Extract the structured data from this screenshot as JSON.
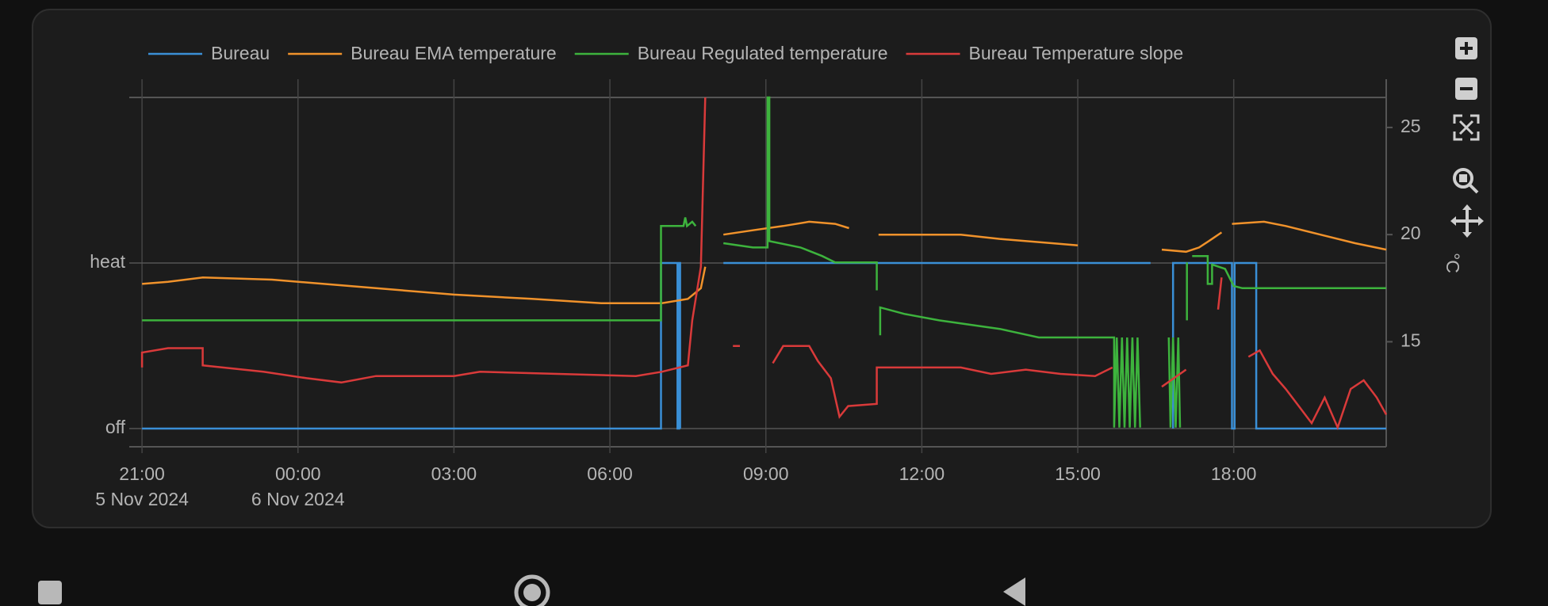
{
  "chart_data": {
    "type": "line",
    "xlim": [
      "2024-11-05T20:59",
      "2024-11-06T20:56"
    ],
    "xticks": [
      {
        "value": "2024-11-05T21:00",
        "label": "21:00"
      },
      {
        "value": "2024-11-06T00:00",
        "label": "00:00"
      },
      {
        "value": "2024-11-06T03:00",
        "label": "03:00"
      },
      {
        "value": "2024-11-06T06:00",
        "label": "06:00"
      },
      {
        "value": "2024-11-06T09:00",
        "label": "09:00"
      },
      {
        "value": "2024-11-06T12:00",
        "label": "12:00"
      },
      {
        "value": "2024-11-06T15:00",
        "label": "15:00"
      },
      {
        "value": "2024-11-06T18:00",
        "label": "18:00"
      }
    ],
    "xtick_dates": [
      {
        "value": "2024-11-05T21:00",
        "label": "5 Nov 2024"
      },
      {
        "value": "2024-11-06T00:00",
        "label": "6 Nov 2024"
      }
    ],
    "ylim": [
      -0.11,
      2.0
    ],
    "yticks": [
      {
        "value": 0,
        "label": "off"
      },
      {
        "value": 1,
        "label": "heat"
      }
    ],
    "y2lim": [
      10.1,
      26.4
    ],
    "y2ticks": [
      15,
      20,
      25
    ],
    "y2label": "°C",
    "grid": true,
    "legend": "top",
    "series": [
      {
        "name": "Bureau",
        "color": "#3a8fd6",
        "axis": "y",
        "x": [
          "2024-11-05T21:00",
          "2024-11-06T06:59",
          "2024-11-06T06:59",
          "2024-11-06T07:18",
          "2024-11-06T07:18",
          "2024-11-06T07:20",
          "2024-11-06T07:20",
          "2024-11-06T07:21",
          "2024-11-06T07:21",
          "2024-11-06T07:22",
          "2024-11-06T08:11",
          "2024-11-06T16:24",
          "2024-11-06T16:25",
          "2024-11-06T16:50",
          "2024-11-06T16:50",
          "2024-11-06T17:58",
          "2024-11-06T17:58",
          "2024-11-06T18:01",
          "2024-11-06T18:01",
          "2024-11-06T18:26",
          "2024-11-06T18:26",
          "2024-11-06T20:56"
        ],
        "values": [
          0,
          0,
          1,
          1,
          0,
          0,
          1,
          1,
          0,
          null,
          1,
          1,
          null,
          0,
          1,
          1,
          0,
          0,
          1,
          1,
          0,
          0
        ]
      },
      {
        "name": "Bureau EMA temperature",
        "color": "#f0922b",
        "axis": "y2",
        "x": [
          "2024-11-05T21:00",
          "2024-11-05T21:30",
          "2024-11-05T22:10",
          "2024-11-05T23:30",
          "2024-11-06T00:30",
          "2024-11-06T01:30",
          "2024-11-06T03:00",
          "2024-11-06T04:30",
          "2024-11-06T05:50",
          "2024-11-06T07:00",
          "2024-11-06T07:30",
          "2024-11-06T07:45",
          "2024-11-06T07:50",
          "2024-11-06T07:52",
          "2024-11-06T08:11",
          "2024-11-06T08:45",
          "2024-11-06T09:20",
          "2024-11-06T09:50",
          "2024-11-06T10:20",
          "2024-11-06T10:36",
          "2024-11-06T10:37",
          "2024-11-06T11:10",
          "2024-11-06T12:45",
          "2024-11-06T13:30",
          "2024-11-06T14:30",
          "2024-11-06T15:00",
          "2024-11-06T15:01",
          "2024-11-06T16:37",
          "2024-11-06T17:05",
          "2024-11-06T17:20",
          "2024-11-06T17:35",
          "2024-11-06T17:46",
          "2024-11-06T17:47",
          "2024-11-06T17:58",
          "2024-11-06T18:35",
          "2024-11-06T19:00",
          "2024-11-06T19:40",
          "2024-11-06T20:20",
          "2024-11-06T20:56"
        ],
        "values": [
          17.7,
          17.8,
          18.0,
          17.9,
          17.7,
          17.5,
          17.2,
          17.0,
          16.8,
          16.8,
          17.0,
          17.5,
          18.5,
          null,
          20.0,
          20.2,
          20.4,
          20.6,
          20.5,
          20.3,
          null,
          20.0,
          20.0,
          19.8,
          19.6,
          19.5,
          null,
          19.3,
          19.2,
          19.4,
          19.8,
          20.1,
          null,
          20.5,
          20.6,
          20.4,
          20.0,
          19.6,
          19.3
        ]
      },
      {
        "name": "Bureau Regulated temperature",
        "color": "#3db33d",
        "axis": "y2",
        "x": [
          "2024-11-05T21:00",
          "2024-11-06T06:59",
          "2024-11-06T06:59",
          "2024-11-06T07:25",
          "2024-11-06T07:27",
          "2024-11-06T07:29",
          "2024-11-06T07:35",
          "2024-11-06T07:39",
          "2024-11-06T07:40",
          "2024-11-06T08:11",
          "2024-11-06T08:45",
          "2024-11-06T09:02",
          "2024-11-06T09:02",
          "2024-11-06T09:04",
          "2024-11-06T09:04",
          "2024-11-06T09:40",
          "2024-11-06T10:05",
          "2024-11-06T10:20",
          "2024-11-06T11:08",
          "2024-11-06T11:08",
          "2024-11-06T11:09",
          "2024-11-06T11:12",
          "2024-11-06T11:12",
          "2024-11-06T11:40",
          "2024-11-06T12:20",
          "2024-11-06T13:30",
          "2024-11-06T14:15",
          "2024-11-06T15:42",
          "2024-11-06T15:42",
          "2024-11-06T15:45",
          "2024-11-06T15:48",
          "2024-11-06T15:51",
          "2024-11-06T15:54",
          "2024-11-06T15:57",
          "2024-11-06T16:00",
          "2024-11-06T16:03",
          "2024-11-06T16:06",
          "2024-11-06T16:09",
          "2024-11-06T16:12",
          "2024-11-06T16:13",
          "2024-11-06T16:45",
          "2024-11-06T16:47",
          "2024-11-06T16:50",
          "2024-11-06T16:53",
          "2024-11-06T16:56",
          "2024-11-06T16:58",
          "2024-11-06T16:59",
          "2024-11-06T17:06",
          "2024-11-06T17:06",
          "2024-11-06T17:07",
          "2024-11-06T17:12",
          "2024-11-06T17:30",
          "2024-11-06T17:30",
          "2024-11-06T17:35",
          "2024-11-06T17:35",
          "2024-11-06T17:50",
          "2024-11-06T18:00",
          "2024-11-06T18:10",
          "2024-11-06T20:56"
        ],
        "values": [
          16.0,
          16.0,
          20.4,
          20.4,
          20.8,
          20.4,
          20.6,
          20.4,
          null,
          19.6,
          19.4,
          19.4,
          26.4,
          26.4,
          19.7,
          19.4,
          19.0,
          18.7,
          18.7,
          17.4,
          null,
          15.3,
          16.6,
          16.3,
          16.0,
          15.6,
          15.2,
          15.2,
          11.0,
          15.2,
          11.0,
          15.2,
          11.0,
          15.2,
          11.0,
          15.2,
          11.0,
          15.2,
          11.0,
          null,
          15.2,
          11.0,
          15.2,
          11.0,
          15.2,
          11.0,
          null,
          18.7,
          16.0,
          null,
          19.0,
          19.0,
          17.7,
          17.7,
          18.6,
          18.4,
          17.6,
          17.5,
          17.5
        ]
      },
      {
        "name": "Bureau Temperature slope",
        "color": "#d93a3a",
        "axis": "y2",
        "x": [
          "2024-11-05T21:00",
          "2024-11-05T21:00",
          "2024-11-05T21:30",
          "2024-11-05T22:10",
          "2024-11-05T22:10",
          "2024-11-05T23:20",
          "2024-11-06T00:10",
          "2024-11-06T00:50",
          "2024-11-06T01:30",
          "2024-11-06T03:00",
          "2024-11-06T03:30",
          "2024-11-06T05:00",
          "2024-11-06T06:30",
          "2024-11-06T07:00",
          "2024-11-06T07:30",
          "2024-11-06T07:35",
          "2024-11-06T07:45",
          "2024-11-06T07:50",
          "2024-11-06T07:51",
          "2024-11-06T08:22",
          "2024-11-06T08:30",
          "2024-11-06T08:31",
          "2024-11-06T09:08",
          "2024-11-06T09:20",
          "2024-11-06T09:50",
          "2024-11-06T10:00",
          "2024-11-06T10:15",
          "2024-11-06T10:25",
          "2024-11-06T10:35",
          "2024-11-06T11:08",
          "2024-11-06T11:08",
          "2024-11-06T12:45",
          "2024-11-06T13:20",
          "2024-11-06T14:00",
          "2024-11-06T14:40",
          "2024-11-06T15:20",
          "2024-11-06T15:40",
          "2024-11-06T15:41",
          "2024-11-06T16:37",
          "2024-11-06T17:05",
          "2024-11-06T17:06",
          "2024-11-06T17:42",
          "2024-11-06T17:46",
          "2024-11-06T17:47",
          "2024-11-06T18:17",
          "2024-11-06T18:30",
          "2024-11-06T18:45",
          "2024-11-06T19:00",
          "2024-11-06T19:15",
          "2024-11-06T19:30",
          "2024-11-06T19:45",
          "2024-11-06T20:00",
          "2024-11-06T20:15",
          "2024-11-06T20:30",
          "2024-11-06T20:45",
          "2024-11-06T20:56"
        ],
        "values": [
          13.8,
          14.5,
          14.7,
          14.7,
          13.9,
          13.6,
          13.3,
          13.1,
          13.4,
          13.4,
          13.6,
          13.5,
          13.4,
          13.6,
          13.9,
          16.0,
          18.5,
          26.4,
          null,
          14.8,
          14.8,
          null,
          14.0,
          14.8,
          14.8,
          14.1,
          13.3,
          11.5,
          12.0,
          12.1,
          13.8,
          13.8,
          13.5,
          13.7,
          13.5,
          13.4,
          13.8,
          null,
          12.9,
          13.7,
          null,
          16.5,
          18.0,
          null,
          14.3,
          14.6,
          13.5,
          12.8,
          12.0,
          11.2,
          12.4,
          11.0,
          12.8,
          13.2,
          12.4,
          11.6
        ]
      }
    ]
  }
}
